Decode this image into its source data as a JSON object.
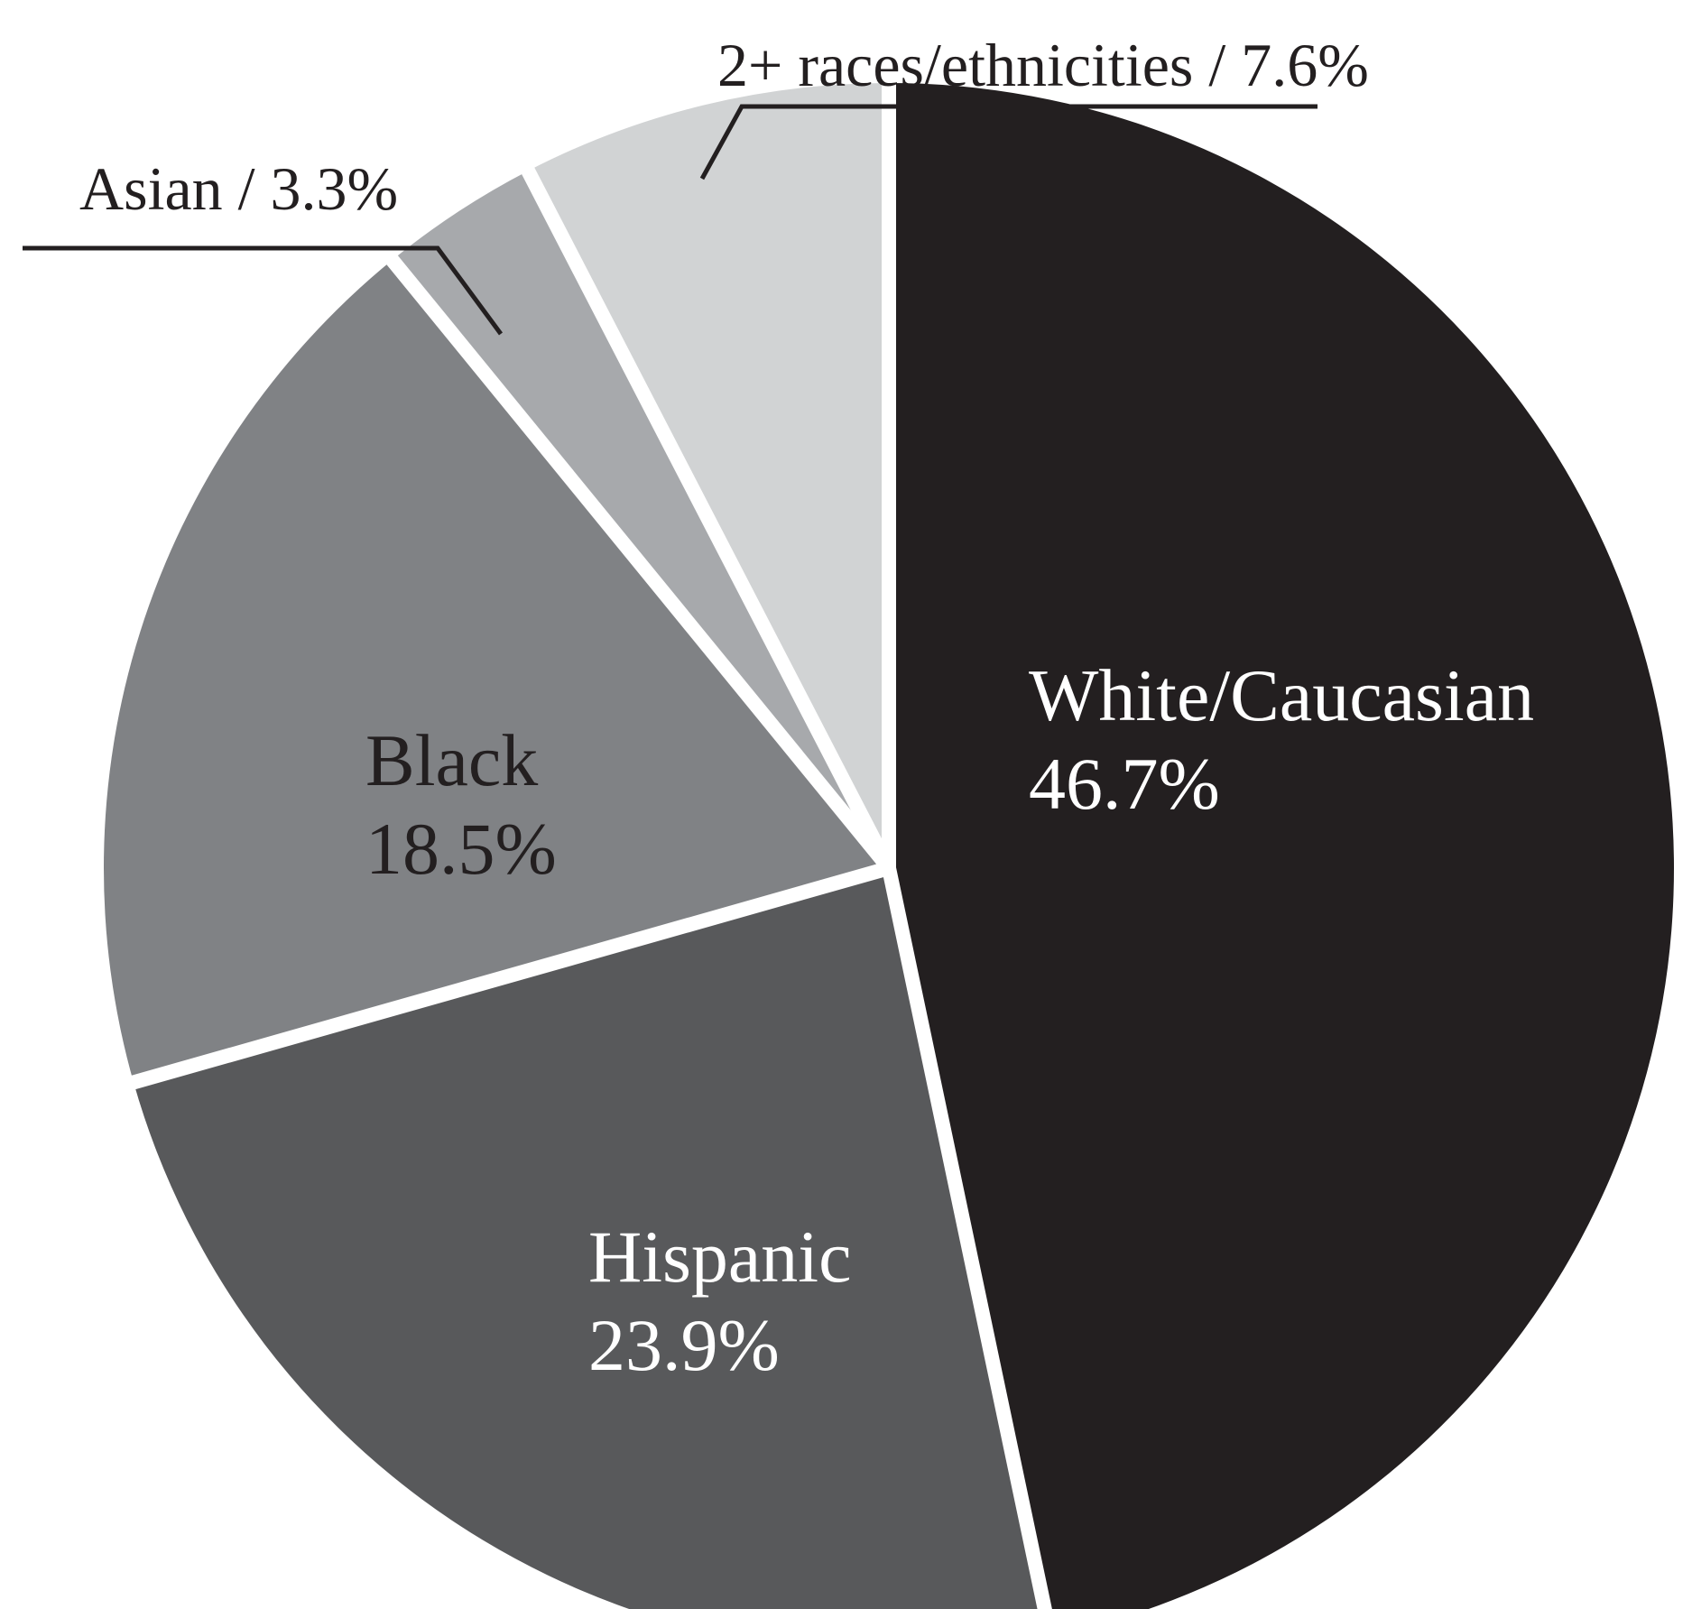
{
  "chart_data": {
    "type": "pie",
    "start_angle_deg": 0,
    "direction": "clockwise",
    "slices": [
      {
        "label": "White/Caucasian",
        "value": 46.7,
        "value_label": "46.7%",
        "color": "#231f20",
        "text_color": "#ffffff",
        "label_style": "inside"
      },
      {
        "label": "Hispanic",
        "value": 23.9,
        "value_label": "23.9%",
        "color": "#58595b",
        "text_color": "#ffffff",
        "label_style": "inside"
      },
      {
        "label": "Black",
        "value": 18.5,
        "value_label": "18.5%",
        "color": "#808285",
        "text_color": "#231f20",
        "label_style": "inside"
      },
      {
        "label": "Asian",
        "value": 3.3,
        "value_label": "3.3%",
        "color": "#a7a9ac",
        "text_color": "#231f20",
        "label_style": "callout",
        "callout_text": "Asian / 3.3%"
      },
      {
        "label": "2+ races/ethnicities",
        "value": 7.6,
        "value_label": "7.6%",
        "color": "#d1d3d4",
        "text_color": "#231f20",
        "label_style": "callout",
        "callout_text": "2+ races/ethnicities / 7.6%"
      }
    ],
    "separator_color": "#ffffff",
    "leader_line_color": "#231f20"
  }
}
